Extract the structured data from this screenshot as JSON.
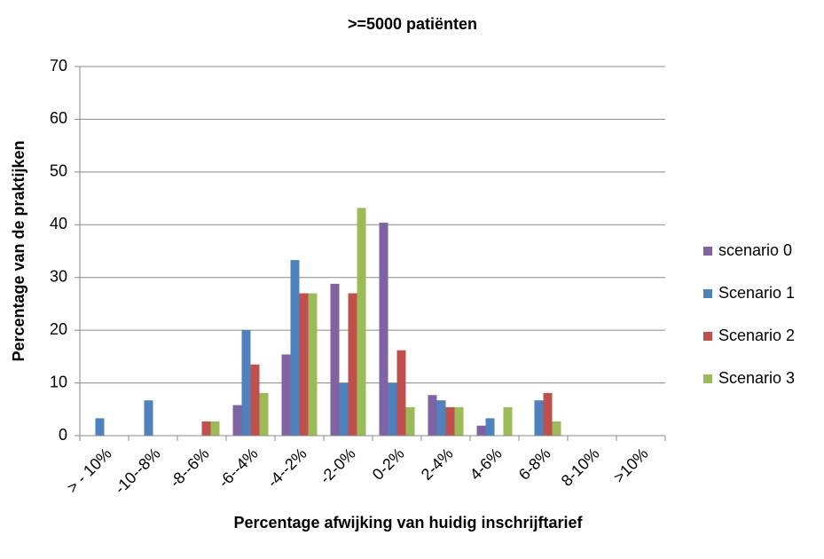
{
  "chart_data": {
    "type": "bar",
    "title": ">=5000 patiënten",
    "x_label": "Percentage afwijking van huidig inschrijftarief",
    "y_label": "Percentage van de praktijken",
    "categories": [
      "> - 10%",
      "-10--8%",
      "-8--6%",
      "-6--4%",
      "-4--2%",
      "-2-0%",
      "0-2%",
      "2-4%",
      "4-6%",
      "6-8%",
      "8-10%",
      ">10%"
    ],
    "series": [
      {
        "name": "scenario 0",
        "color": "#8064a2",
        "values": [
          0,
          0,
          0,
          5.8,
          15.4,
          28.8,
          40.4,
          7.7,
          1.9,
          0,
          0,
          0
        ]
      },
      {
        "name": "Scenario 1",
        "color": "#4f81bd",
        "values": [
          3.3,
          6.7,
          0,
          20,
          33.3,
          10,
          10,
          6.7,
          3.3,
          6.7,
          0,
          0
        ]
      },
      {
        "name": "Scenario 2",
        "color": "#c0504d",
        "values": [
          0,
          0,
          2.7,
          13.5,
          27,
          27,
          16.2,
          5.4,
          0,
          8.1,
          0,
          0
        ]
      },
      {
        "name": "Scenario 3",
        "color": "#9bbb59",
        "values": [
          0,
          0,
          2.7,
          8.1,
          27,
          43.2,
          5.4,
          5.4,
          5.4,
          2.7,
          0,
          0
        ]
      }
    ],
    "ylim": [
      0,
      70
    ],
    "yticks": [
      0,
      10,
      20,
      30,
      40,
      50,
      60,
      70
    ],
    "grid": true,
    "legend": "right"
  }
}
